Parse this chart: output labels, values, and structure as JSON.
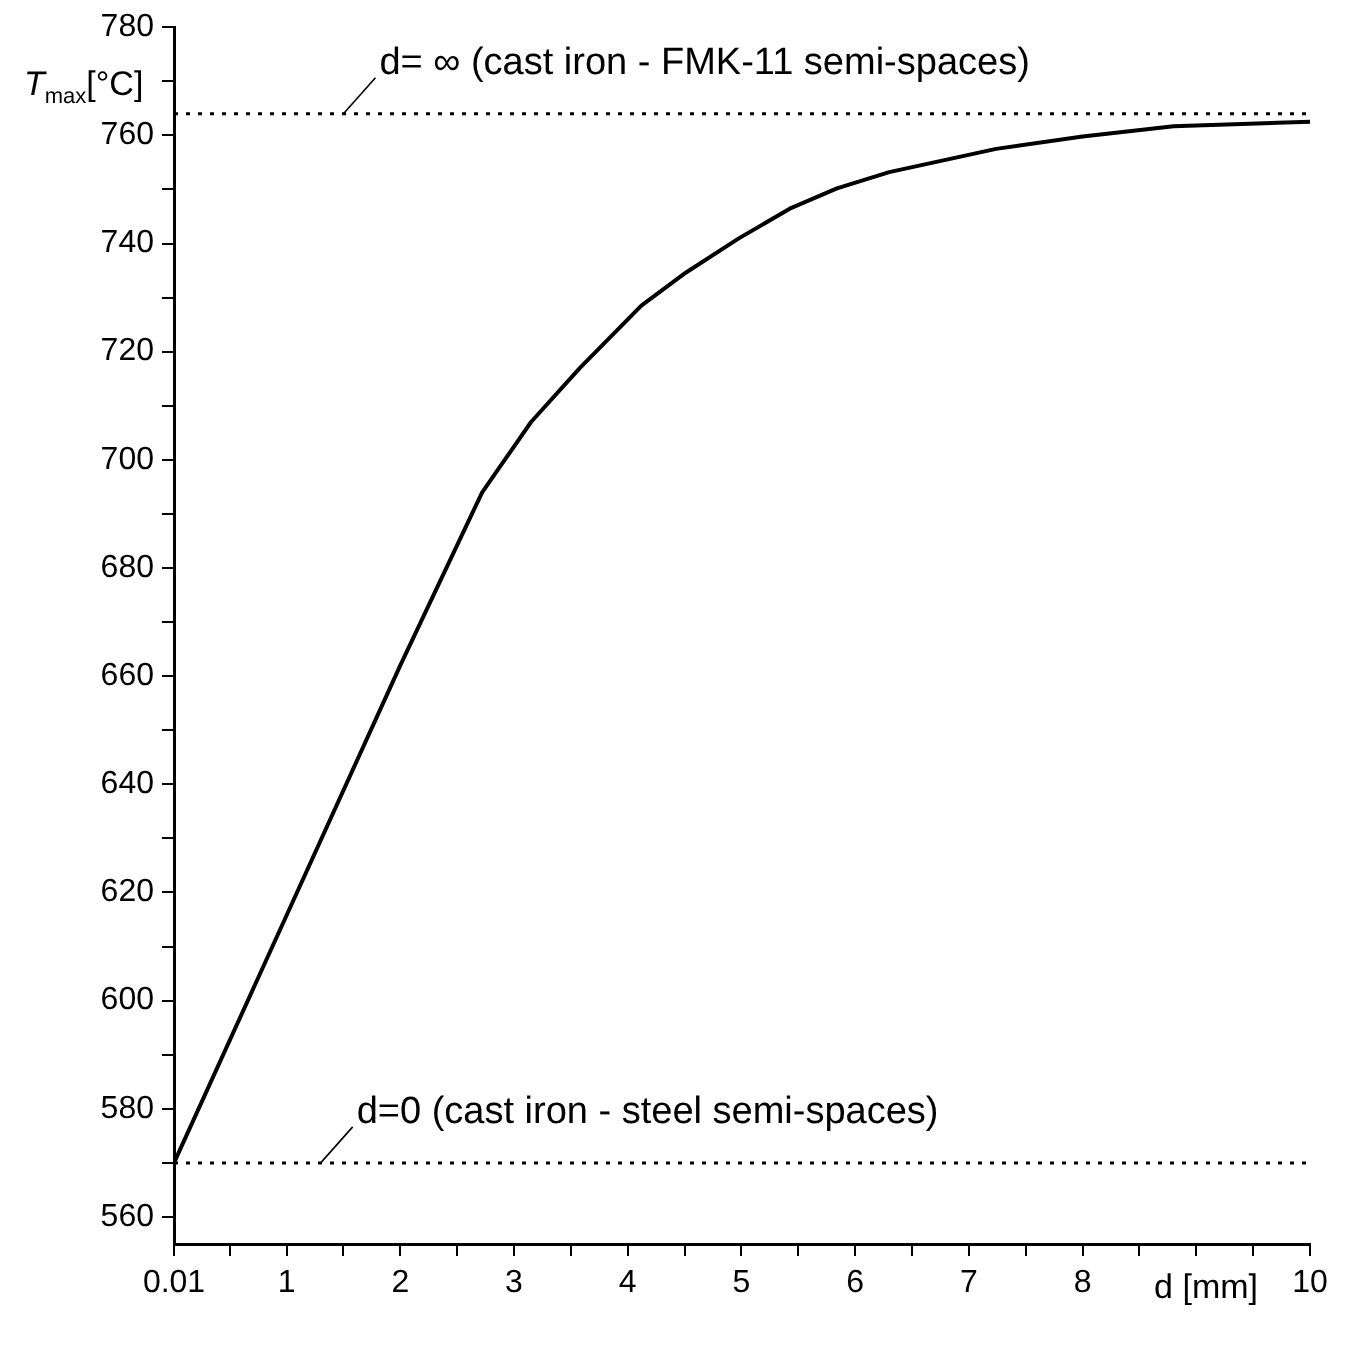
{
  "chart_data": {
    "type": "line",
    "xlabel": "d [mm]",
    "ylabel": "T$_{max}$[°C]",
    "x": [
      0.01,
      2,
      2.72,
      3.15,
      3.58,
      4.12,
      4.51,
      4.98,
      5.44,
      5.84,
      6.3,
      7.24,
      8,
      8.8,
      10
    ],
    "series": [
      {
        "color": "#000000",
        "values": [
          570,
          662,
          694,
          707,
          717,
          728.5,
          734.6,
          741,
          746.6,
          750.2,
          753.2,
          757.5,
          759.8,
          761.7,
          762.5
        ]
      }
    ],
    "xlim": [
      0.01,
      10
    ],
    "xticks": [
      {
        "value": 0.01,
        "label": "0.01"
      },
      {
        "value": 0.5,
        "label": null
      },
      1,
      {
        "value": 1.5,
        "label": null
      },
      2,
      {
        "value": 2.5,
        "label": null
      },
      3,
      {
        "value": 3.5,
        "label": null
      },
      4,
      {
        "value": 4.5,
        "label": null
      },
      5,
      {
        "value": 5.5,
        "label": null
      },
      6,
      {
        "value": 6.5,
        "label": null
      },
      7,
      {
        "value": 7.5,
        "label": null
      },
      8,
      {
        "value": 8.5,
        "label": null
      },
      {
        "value": 9,
        "label": null
      },
      {
        "value": 9.5,
        "label": null
      },
      10
    ],
    "ylim": [
      555,
      780
    ],
    "yticks": [
      560,
      {
        "value": 570,
        "label": null
      },
      580,
      {
        "value": 590,
        "label": null
      },
      600,
      {
        "value": 610,
        "label": null
      },
      620,
      {
        "value": 630,
        "label": null
      },
      640,
      {
        "value": 650,
        "label": null
      },
      660,
      {
        "value": 670,
        "label": null
      },
      680,
      {
        "value": 690,
        "label": null
      },
      700,
      {
        "value": 710,
        "label": null
      },
      720,
      {
        "value": 730,
        "label": null
      },
      740,
      {
        "value": 750,
        "label": null
      },
      760,
      {
        "value": 770,
        "label": null
      },
      780
    ],
    "ref_lines": [
      {
        "axis": "y",
        "value": 764,
        "line_style": "dotted",
        "color": "#000000"
      },
      {
        "axis": "y",
        "value": 570,
        "line_style": "dotted",
        "color": "#000000"
      }
    ],
    "annotations": [
      {
        "text": "d= ∞ (cast iron - FMK-11 semi-spaces)",
        "x": 1.5,
        "y": 764
      },
      {
        "text": "d=0 (cast iron - steel semi-spaces)",
        "x": 1.3,
        "y": 570
      }
    ],
    "grid": false,
    "legend": false,
    "marker": "none",
    "line_style": "solid"
  }
}
